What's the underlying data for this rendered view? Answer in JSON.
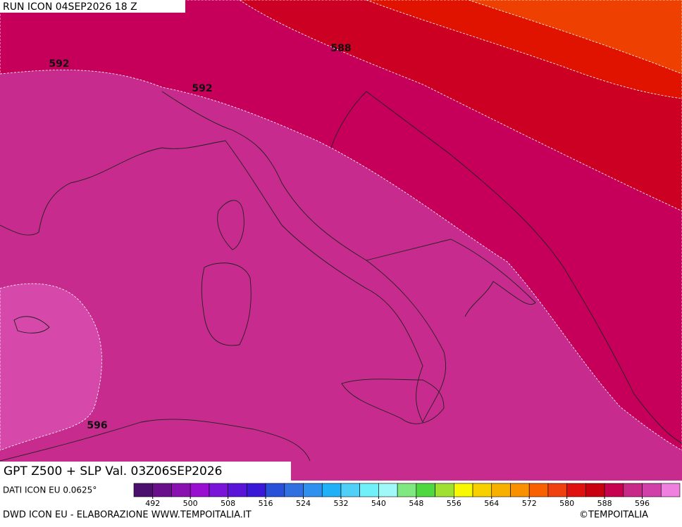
{
  "header": {
    "run": "RUN ICON 04SEP2026 18 Z"
  },
  "map": {
    "contour_labels": [
      588,
      592,
      592,
      596
    ]
  },
  "footer": {
    "title": "GPT Z500 + SLP Val. 03Z06SEP2026",
    "data_source": "DATI ICON EU 0.0625°",
    "credit": "DWD ICON EU - ELABORAZIONE WWW.TEMPOITALIA.IT",
    "copyright": "©TEMPOITALIA"
  },
  "colorbar": {
    "colors": [
      "#4b0f6e",
      "#6a0f8c",
      "#8a10b0",
      "#9a10d0",
      "#7a14d8",
      "#5a14d8",
      "#3a18d8",
      "#2850d8",
      "#3070e0",
      "#3090f0",
      "#20b0f8",
      "#50d0f8",
      "#70f0f8",
      "#a0f8f8",
      "#80e880",
      "#50d840",
      "#a0e030",
      "#f8f800",
      "#f8d000",
      "#f8b000",
      "#f89000",
      "#f86000",
      "#f04010",
      "#e01010",
      "#c80010",
      "#c80050",
      "#c82888",
      "#d040a8",
      "#f080e0"
    ],
    "ticks": [
      492,
      500,
      508,
      516,
      524,
      532,
      540,
      548,
      556,
      564,
      572,
      580,
      588,
      596
    ]
  }
}
